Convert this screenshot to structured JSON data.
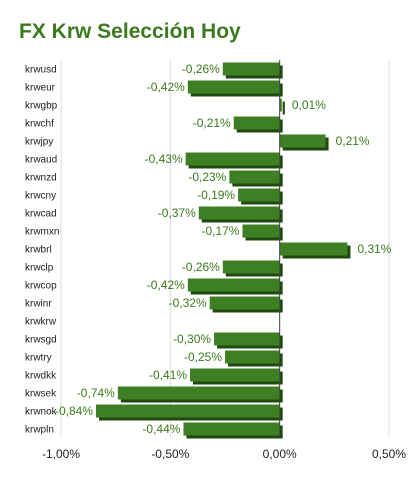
{
  "chart_data": {
    "type": "bar",
    "orientation": "horizontal",
    "title": "FX Krw Selección Hoy",
    "categories": [
      "krwusd",
      "krweur",
      "krwgbp",
      "krwchf",
      "krwjpy",
      "krwaud",
      "krwnzd",
      "krwcny",
      "krwcad",
      "krwmxn",
      "krwbrl",
      "krwclp",
      "krwcop",
      "krwinr",
      "krwkrw",
      "krwsgd",
      "krwtry",
      "krwdkk",
      "krwsek",
      "krwnok",
      "krwpln"
    ],
    "values": [
      -0.26,
      -0.42,
      0.01,
      -0.21,
      0.21,
      -0.43,
      -0.23,
      -0.19,
      -0.37,
      -0.17,
      0.31,
      -0.26,
      -0.42,
      -0.32,
      null,
      -0.3,
      -0.25,
      -0.41,
      -0.74,
      -0.84,
      -0.44
    ],
    "labels": [
      "-0,26%",
      "-0,42%",
      "0,01%",
      "-0,21%",
      "0,21%",
      "-0,43%",
      "-0,23%",
      "-0,19%",
      "-0,37%",
      "-0,17%",
      "0,31%",
      "-0,26%",
      "-0,42%",
      "-0,32%",
      "",
      "-0,30%",
      "-0,25%",
      "-0,41%",
      "-0,74%",
      "-0,84%",
      "-0,44%"
    ],
    "xlim": [
      -1.0,
      0.5
    ],
    "ticks": [
      -1.0,
      -0.5,
      0.0,
      0.5
    ],
    "tick_labels": [
      "-1,00%",
      "-0,50%",
      "0,00%",
      "0,50%"
    ],
    "grid": true,
    "legend": "none",
    "colors": {
      "bar": "#3f7f24",
      "bar_shadow": "#1f4a0f",
      "label": "#3a7a1c",
      "title": "#3c7a1f",
      "grid": "#dddddd"
    }
  }
}
